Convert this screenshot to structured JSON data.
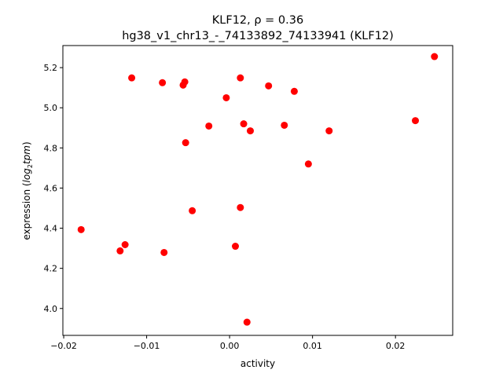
{
  "chart_data": {
    "type": "scatter",
    "title": "KLF12, ρ = 0.36",
    "subtitle": "hg38_v1_chr13_-_74133892_74133941 (KLF12)",
    "xlabel": "activity",
    "ylabel_main": "expression (",
    "ylabel_italic": "log",
    "ylabel_sub": "2",
    "ylabel_italic2": "tpm",
    "ylabel_end": ")",
    "xlim": [
      -0.0201,
      0.0269
    ],
    "ylim": [
      3.866,
      5.31
    ],
    "xticks": [
      -0.02,
      -0.01,
      0.0,
      0.01,
      0.02
    ],
    "xtick_labels": [
      "−0.02",
      "−0.01",
      "0.00",
      "0.01",
      "0.02"
    ],
    "yticks": [
      4.0,
      4.2,
      4.4,
      4.6,
      4.8,
      5.0,
      5.2
    ],
    "ytick_labels": [
      "4.0",
      "4.2",
      "4.4",
      "4.6",
      "4.8",
      "5.0",
      "5.2"
    ],
    "grid": false,
    "marker_color": "#ff0000",
    "points": [
      [
        0.0247,
        5.255
      ],
      [
        -0.0118,
        5.149
      ],
      [
        -0.0081,
        5.125
      ],
      [
        -0.0054,
        5.129
      ],
      [
        -0.0056,
        5.113
      ],
      [
        0.0013,
        5.149
      ],
      [
        0.0047,
        5.109
      ],
      [
        0.0078,
        5.082
      ],
      [
        -0.0004,
        5.05
      ],
      [
        -0.0025,
        4.909
      ],
      [
        0.0017,
        4.92
      ],
      [
        0.0025,
        4.885
      ],
      [
        0.0066,
        4.913
      ],
      [
        0.012,
        4.885
      ],
      [
        0.0224,
        4.936
      ],
      [
        -0.0053,
        4.826
      ],
      [
        0.0095,
        4.72
      ],
      [
        -0.0045,
        4.487
      ],
      [
        0.0013,
        4.503
      ],
      [
        -0.0179,
        4.393
      ],
      [
        -0.0126,
        4.318
      ],
      [
        -0.0132,
        4.287
      ],
      [
        -0.0079,
        4.279
      ],
      [
        0.0007,
        4.31
      ],
      [
        0.0021,
        3.932
      ]
    ]
  }
}
